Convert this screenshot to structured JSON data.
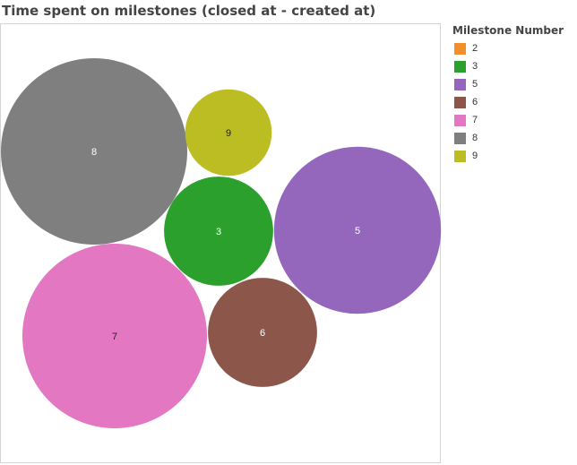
{
  "chart_data": {
    "type": "bubble",
    "title": "Time spent on milestones (closed at - created at)",
    "legend": {
      "title": "Milestone Number",
      "placement": "right"
    },
    "series": [
      {
        "name": "2",
        "label": "",
        "value": 0,
        "color": "#f28e2b"
      },
      {
        "name": "3",
        "label": "3",
        "value": 3.5,
        "color": "#2ca02c"
      },
      {
        "name": "5",
        "label": "5",
        "value": 8.2,
        "color": "#9467bd"
      },
      {
        "name": "6",
        "label": "6",
        "value": 3.5,
        "color": "#8c564b"
      },
      {
        "name": "7",
        "label": "7",
        "value": 10.0,
        "color": "#e377c2"
      },
      {
        "name": "8",
        "label": "8",
        "value": 10.2,
        "color": "#7f7f7f"
      },
      {
        "name": "9",
        "label": "9",
        "value": 2.2,
        "color": "#bcbd22"
      }
    ]
  }
}
